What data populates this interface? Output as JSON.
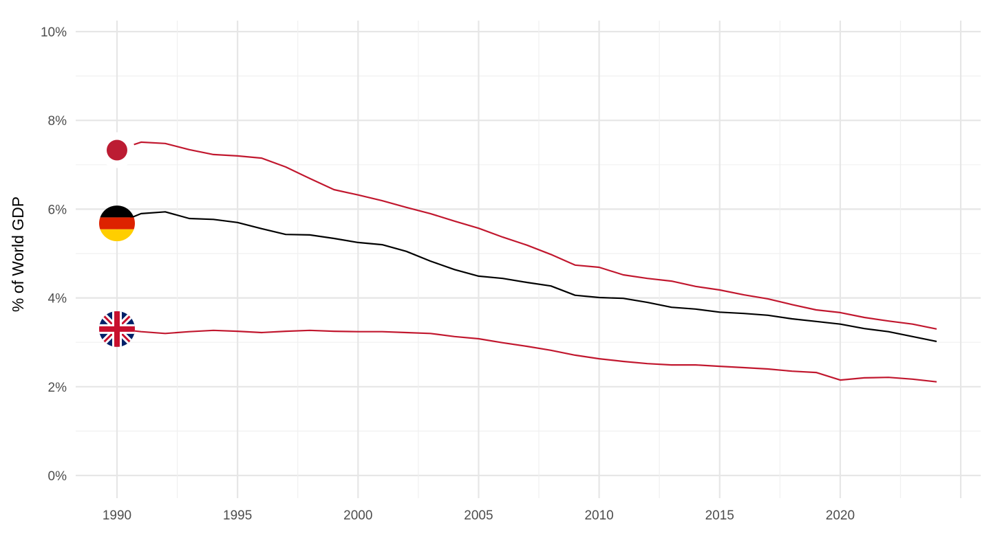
{
  "chart_data": {
    "type": "line",
    "title": "",
    "xlabel": "",
    "ylabel": "% of World GDP",
    "xlim": [
      1988.3,
      2025.9
    ],
    "ylim": [
      -0.5,
      10.3
    ],
    "x_ticks": [
      1990,
      1995,
      2000,
      2005,
      2010,
      2015,
      2020
    ],
    "x_tick_labels": [
      "1990",
      "1995",
      "2000",
      "2005",
      "2010",
      "2015",
      "2020"
    ],
    "y_ticks": [
      0,
      2,
      4,
      6,
      8,
      10
    ],
    "y_tick_labels": [
      "0%",
      "2%",
      "4%",
      "6%",
      "8%",
      "10%"
    ],
    "grid": true,
    "legend": "none (flag markers at line start)",
    "x": [
      1990,
      1991,
      1992,
      1993,
      1994,
      1995,
      1996,
      1997,
      1998,
      1999,
      2000,
      2001,
      2002,
      2003,
      2004,
      2005,
      2006,
      2007,
      2008,
      2009,
      2010,
      2011,
      2012,
      2013,
      2014,
      2015,
      2016,
      2017,
      2018,
      2019,
      2020,
      2021,
      2022,
      2023,
      2024
    ],
    "series": [
      {
        "name": "Japan",
        "flag": "japan",
        "color": "#c1172e",
        "values": [
          7.33,
          7.51,
          7.48,
          7.34,
          7.23,
          7.2,
          7.15,
          6.95,
          6.69,
          6.44,
          6.32,
          6.19,
          6.04,
          5.9,
          5.73,
          5.57,
          5.37,
          5.19,
          4.98,
          4.74,
          4.69,
          4.52,
          4.44,
          4.38,
          4.26,
          4.18,
          4.07,
          3.98,
          3.85,
          3.73,
          3.67,
          3.56,
          3.48,
          3.41,
          3.3
        ]
      },
      {
        "name": "Germany",
        "flag": "germany",
        "color": "#000000",
        "values": [
          5.68,
          5.9,
          5.94,
          5.79,
          5.77,
          5.7,
          5.56,
          5.43,
          5.42,
          5.34,
          5.25,
          5.2,
          5.05,
          4.83,
          4.64,
          4.49,
          4.44,
          4.35,
          4.27,
          4.06,
          4.01,
          3.99,
          3.9,
          3.79,
          3.75,
          3.68,
          3.65,
          3.61,
          3.53,
          3.47,
          3.41,
          3.31,
          3.24,
          3.13,
          3.02
        ]
      },
      {
        "name": "United Kingdom",
        "flag": "uk",
        "color": "#c1172e",
        "values": [
          3.3,
          3.24,
          3.2,
          3.24,
          3.27,
          3.25,
          3.22,
          3.25,
          3.27,
          3.25,
          3.24,
          3.24,
          3.22,
          3.2,
          3.13,
          3.08,
          2.99,
          2.91,
          2.82,
          2.71,
          2.63,
          2.57,
          2.52,
          2.49,
          2.49,
          2.46,
          2.43,
          2.4,
          2.35,
          2.32,
          2.15,
          2.2,
          2.21,
          2.17,
          2.11
        ]
      }
    ]
  }
}
